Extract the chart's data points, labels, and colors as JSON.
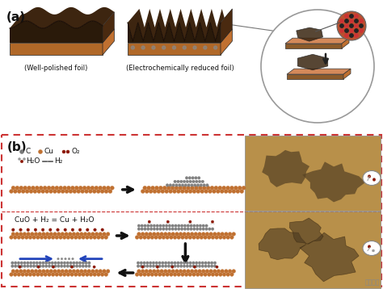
{
  "fig_width": 4.74,
  "fig_height": 3.58,
  "dpi": 100,
  "bg_color": "#ffffff",
  "panel_a_label": "(a)",
  "panel_b_label": "(b)",
  "foil1_label": "(Well-polished foil)",
  "foil2_label": "(Electrochemically reduced foil)",
  "equation": "CuO + H₂ = Cu + H₂O",
  "copper_color": "#c07030",
  "copper_dark": "#8b4000",
  "copper_edge": "#5a2800",
  "graphene_gray": "#606060",
  "graphene_light": "#909090",
  "red_dot_color": "#8b1500",
  "border_color": "#cc3333",
  "arrow_color": "#2244bb",
  "foil_top_color": "#2a1a0a",
  "foil_top2": "#3d2510",
  "foil_side_color": "#c07030",
  "foil_base_color": "#d4895a",
  "foil_front_color": "#b06828",
  "circle_edge": "#aaaaaa",
  "plate_tan": "#c8844a",
  "plate_dark": "#8b5a2a",
  "plate_top": "#d4895a",
  "graphene_hex": "#555555",
  "micro_bg": "#b8904a",
  "micro_island": "#6a5030",
  "inset_bg": "#d8c8a0",
  "watermark": "#888888"
}
